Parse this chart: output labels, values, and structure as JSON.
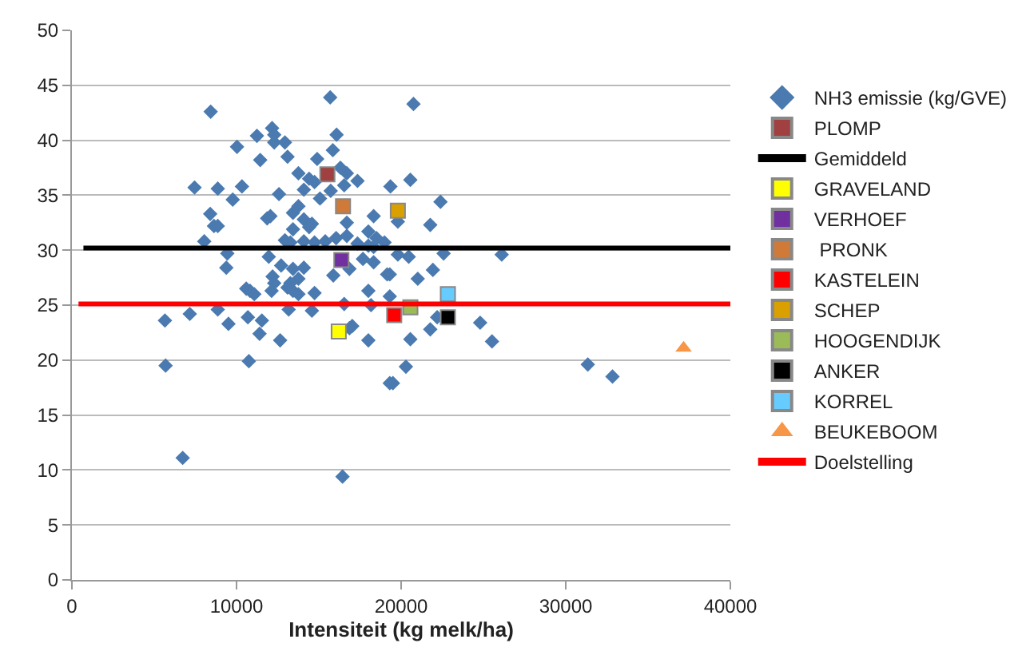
{
  "chart_data": {
    "type": "scatter",
    "xlabel": "Intensiteit (kg melk/ha)",
    "xlim": [
      0,
      40000
    ],
    "xticks": [
      0,
      10000,
      20000,
      30000,
      40000
    ],
    "ylim": [
      0,
      50
    ],
    "yticks": [
      0,
      5,
      10,
      15,
      20,
      25,
      30,
      35,
      40,
      45,
      50
    ],
    "grid": "y",
    "legend": "right",
    "series": [
      {
        "name": "NH3 emissie (kg/GVE)",
        "color": "#4a7ab0",
        "marker": "diamond",
        "x": [
          8430,
          15690,
          12160,
          12290,
          12290,
          11240,
          12940,
          16080,
          15850,
          10030,
          13100,
          11440,
          14900,
          7450,
          8860,
          10330,
          9770,
          12580,
          13760,
          14410,
          14740,
          16310,
          16700,
          17350,
          14090,
          15070,
          15720,
          16540,
          8400,
          8630,
          8860,
          11860,
          12060,
          13430,
          13760,
          14090,
          14410,
          14580,
          13430,
          16700,
          18330,
          18010,
          8040,
          12940,
          13270,
          14090,
          14740,
          15390,
          16050,
          16700,
          17350,
          18010,
          18330,
          18990,
          9440,
          11960,
          12710,
          17680,
          18330,
          9380,
          13430,
          14090,
          15880,
          16860,
          19150,
          12190,
          12290,
          10590,
          10820,
          11080,
          12130,
          13100,
          13430,
          13760,
          14740,
          18010,
          13760,
          13270,
          18170,
          16540,
          7160,
          8860,
          10690,
          11540,
          5650,
          9510,
          11400,
          12650,
          13170,
          14580,
          17030,
          16860,
          18010,
          5690,
          10750,
          6730,
          16440,
          19310,
          20750,
          19350,
          20560,
          22390,
          21770,
          19800,
          18500,
          19800,
          20460,
          22580,
          26110,
          19310,
          21010,
          21930,
          19310,
          22190,
          21770,
          24800,
          25520,
          20560,
          20290,
          19500,
          31340,
          32840
        ],
        "values": [
          42.6,
          43.9,
          41.1,
          40.5,
          39.8,
          40.4,
          39.8,
          40.5,
          39.1,
          39.4,
          38.5,
          38.2,
          38.3,
          35.7,
          35.6,
          35.8,
          34.6,
          35.1,
          37.0,
          36.5,
          36.2,
          37.5,
          37.0,
          36.3,
          35.5,
          34.7,
          35.4,
          35.9,
          33.3,
          32.2,
          32.2,
          32.9,
          33.1,
          33.4,
          34.0,
          32.8,
          32.1,
          32.4,
          31.9,
          32.5,
          33.1,
          31.7,
          30.8,
          30.9,
          30.7,
          30.8,
          30.7,
          30.8,
          31.1,
          31.3,
          30.6,
          30.4,
          30.3,
          30.7,
          29.7,
          29.4,
          28.6,
          29.2,
          28.9,
          28.4,
          28.3,
          28.4,
          27.7,
          28.3,
          27.8,
          27.6,
          27.0,
          26.5,
          26.3,
          26.0,
          26.3,
          26.6,
          26.3,
          26.0,
          26.1,
          26.3,
          27.4,
          27.0,
          25.0,
          25.1,
          24.2,
          24.6,
          23.9,
          23.6,
          23.6,
          23.3,
          22.4,
          21.8,
          24.6,
          24.5,
          23.1,
          22.9,
          21.8,
          19.5,
          19.9,
          11.1,
          9.4,
          17.9,
          43.3,
          35.8,
          36.4,
          34.4,
          32.3,
          32.6,
          31.1,
          29.6,
          29.4,
          29.7,
          29.6,
          27.8,
          27.4,
          28.2,
          25.8,
          23.9,
          22.8,
          23.4,
          21.7,
          21.9,
          19.4,
          17.9,
          19.6,
          18.5
        ]
      },
      {
        "name": "PLOMP",
        "color": "#a04040",
        "marker": "square",
        "x": [
          15520
        ],
        "values": [
          36.9
        ]
      },
      {
        "name": "Gemiddeld",
        "type": "line",
        "color": "#000000",
        "marker": "none",
        "x": [
          700,
          40000
        ],
        "values": [
          30.2,
          30.2
        ]
      },
      {
        "name": "GRAVELAND",
        "color": "#ffff00",
        "marker": "square",
        "x": [
          16210
        ],
        "values": [
          22.6
        ]
      },
      {
        "name": "VERHOEF",
        "color": "#7030a0",
        "marker": "square",
        "x": [
          16370
        ],
        "values": [
          29.1
        ]
      },
      {
        "name": " PRONK",
        "color": "#d07a3a",
        "marker": "square",
        "x": [
          16470
        ],
        "values": [
          34.0
        ]
      },
      {
        "name": "KASTELEIN",
        "color": "#ff0000",
        "marker": "square",
        "x": [
          19580
        ],
        "values": [
          24.1
        ]
      },
      {
        "name": "SCHEP",
        "color": "#d9a000",
        "marker": "square",
        "x": [
          19800
        ],
        "values": [
          33.6
        ]
      },
      {
        "name": "HOOGENDIJK",
        "color": "#9bbb59",
        "marker": "square",
        "x": [
          20560
        ],
        "values": [
          24.8
        ]
      },
      {
        "name": "ANKER",
        "color": "#000000",
        "marker": "square",
        "x": [
          22840
        ],
        "values": [
          23.9
        ]
      },
      {
        "name": "KORREL",
        "color": "#66ccff",
        "marker": "square",
        "x": [
          22840
        ],
        "values": [
          26.0
        ]
      },
      {
        "name": "BEUKEBOOM",
        "color": "#f79646",
        "marker": "triangle",
        "x": [
          37160
        ],
        "values": [
          21.1
        ]
      },
      {
        "name": "Doelstelling",
        "type": "line",
        "color": "#ff0000",
        "marker": "none",
        "x": [
          400,
          40000
        ],
        "values": [
          25.1,
          25.1
        ]
      }
    ]
  }
}
